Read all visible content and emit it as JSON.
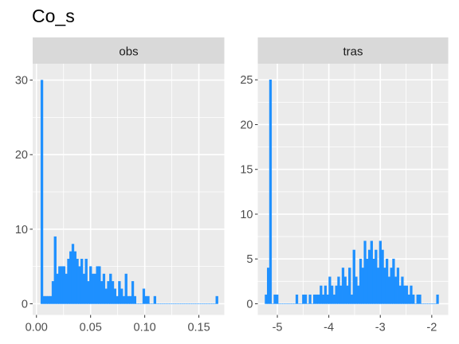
{
  "title": "Co_s",
  "colors": {
    "bar": "#1E90FF",
    "panel_bg": "#EBEBEB",
    "strip_bg": "#D9D9D9",
    "grid_major": "#FFFFFF",
    "tick_text": "#4D4D4D",
    "tick_mark": "#333333"
  },
  "chart_data": [
    {
      "type": "bar",
      "panel": "obs",
      "strip_label": "obs",
      "xlim": [
        -0.0035,
        0.1735
      ],
      "ylim": [
        -1.5,
        32.2
      ],
      "x_ticks": [
        0.0,
        0.05,
        0.1,
        0.15
      ],
      "x_tick_labels": [
        "0.00",
        "0.05",
        "0.10",
        "0.15"
      ],
      "y_ticks": [
        0,
        10,
        20,
        30
      ],
      "y_tick_labels": [
        "0",
        "10",
        "20",
        "30"
      ],
      "grid": true,
      "bin_width": 0.002046,
      "bin_start": 0.004,
      "counts": [
        30,
        1,
        1,
        1,
        1,
        3,
        9,
        4,
        5,
        5,
        5,
        4,
        6,
        7,
        8,
        7,
        6,
        5,
        6,
        4,
        6,
        3,
        5,
        4,
        4,
        5,
        5,
        3,
        4,
        2,
        3,
        4,
        3,
        2,
        1,
        3,
        2,
        1,
        4,
        1,
        1,
        3,
        1,
        0,
        0,
        0,
        2,
        1,
        1,
        0,
        0,
        1,
        0,
        0,
        0,
        0,
        0,
        0,
        0,
        0,
        0,
        0,
        0,
        0,
        0,
        0,
        0,
        0,
        0,
        0,
        0,
        0,
        0,
        0,
        0,
        0,
        0,
        0,
        0,
        1
      ]
    },
    {
      "type": "bar",
      "panel": "tras",
      "strip_label": "tras",
      "xlim": [
        -5.38,
        -1.68
      ],
      "ylim": [
        -1.25,
        26.8
      ],
      "x_ticks": [
        -5,
        -4,
        -3,
        -2
      ],
      "x_tick_labels": [
        "-5",
        "-4",
        "-3",
        "-2"
      ],
      "y_ticks": [
        0,
        5,
        10,
        15,
        20,
        25
      ],
      "y_tick_labels": [
        "0",
        "5",
        "10",
        "15",
        "20",
        "25"
      ],
      "grid": true,
      "bin_width": 0.0427,
      "bin_start": -5.24,
      "counts": [
        1,
        4,
        25,
        0,
        1,
        1,
        0,
        0,
        0,
        0,
        0,
        0,
        0,
        0,
        1,
        0,
        0,
        1,
        1,
        0,
        1,
        0,
        1,
        1,
        1,
        2,
        1,
        2,
        1,
        3,
        2,
        1,
        2,
        3,
        2,
        4,
        3,
        2,
        4,
        1,
        6,
        3,
        2,
        5,
        4,
        7,
        5,
        6,
        7,
        5,
        6,
        4,
        7,
        6,
        4,
        5,
        3,
        4,
        5,
        3,
        4,
        2,
        3,
        2,
        2,
        1,
        2,
        1,
        0,
        1,
        1,
        0,
        0,
        0,
        0,
        0,
        0,
        0,
        1
      ]
    }
  ]
}
